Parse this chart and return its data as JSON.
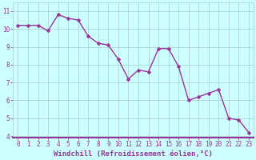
{
  "x": [
    0,
    1,
    2,
    3,
    4,
    5,
    6,
    7,
    8,
    9,
    10,
    11,
    12,
    13,
    14,
    15,
    16,
    17,
    18,
    19,
    20,
    21,
    22,
    23
  ],
  "y": [
    10.2,
    10.2,
    10.2,
    9.9,
    10.8,
    10.6,
    10.5,
    9.6,
    9.2,
    9.1,
    8.3,
    7.2,
    7.7,
    7.6,
    8.9,
    8.9,
    7.9,
    6.0,
    6.2,
    6.4,
    6.6,
    5.0,
    4.9,
    4.2
  ],
  "line_color": "#993399",
  "marker_color": "#993399",
  "bg_color": "#ccffff",
  "grid_color": "#aacccc",
  "spine_color": "#993399",
  "xlabel": "Windchill (Refroidissement éolien,°C)",
  "xlim": [
    -0.5,
    23.5
  ],
  "ylim": [
    3.9,
    11.5
  ],
  "yticks": [
    4,
    5,
    6,
    7,
    8,
    9,
    10,
    11
  ],
  "xticks": [
    0,
    1,
    2,
    3,
    4,
    5,
    6,
    7,
    8,
    9,
    10,
    11,
    12,
    13,
    14,
    15,
    16,
    17,
    18,
    19,
    20,
    21,
    22,
    23
  ],
  "xlabel_fontsize": 6.5,
  "tick_fontsize": 5.5,
  "line_width": 1.0,
  "marker_size": 2.5
}
